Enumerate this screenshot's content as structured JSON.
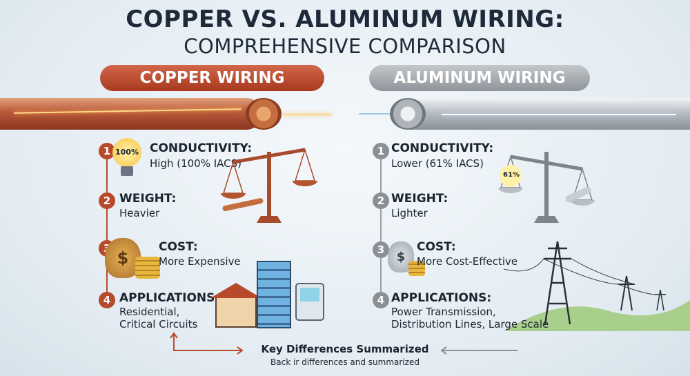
{
  "title": {
    "line1": "COPPER VS. ALUMINUM WIRING:",
    "line2": "COMPREHENSIVE COMPARISON"
  },
  "colors": {
    "copper": "#b84a2c",
    "aluminum": "#8a9096",
    "title": "#1e2a3a"
  },
  "copper": {
    "header": "COPPER WIRING",
    "items": [
      {
        "num": "1",
        "label": "CONDUCTIVITY:",
        "value": "High (100% IACS)",
        "icon": "lightbulb-icon",
        "badge": "100%"
      },
      {
        "num": "2",
        "label": "WEIGHT:",
        "value": "Heavier",
        "icon": "scale-icon"
      },
      {
        "num": "3",
        "label": "COST:",
        "value": "More Expensive",
        "icon": "money-bag-icon"
      },
      {
        "num": "4",
        "label": "APPLICATIONS:",
        "value": "Residential,",
        "value2": "Critical Circuits",
        "icon": "house-building-icon"
      }
    ]
  },
  "aluminum": {
    "header": "ALUMINUM WIRING",
    "items": [
      {
        "num": "1",
        "label": "CONDUCTIVITY:",
        "value": "Lower (61% IACS)",
        "icon": "scale-icon",
        "badge": "61%"
      },
      {
        "num": "2",
        "label": "WEIGHT:",
        "value": "Lighter"
      },
      {
        "num": "3",
        "label": "COST:",
        "value": "More Cost-Effective",
        "icon": "money-bag-icon"
      },
      {
        "num": "4",
        "label": "APPLICATIONS:",
        "value": "Power Transmission,",
        "value2": "Distribution Lines, Large Scale",
        "icon": "transmission-tower-icon"
      }
    ]
  },
  "footer": {
    "title": "Key Differences Summarized",
    "subtitle": "Back ir differences and summarized"
  }
}
